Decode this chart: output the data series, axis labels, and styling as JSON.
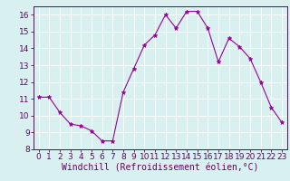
{
  "x": [
    0,
    1,
    2,
    3,
    4,
    5,
    6,
    7,
    8,
    9,
    10,
    11,
    12,
    13,
    14,
    15,
    16,
    17,
    18,
    19,
    20,
    21,
    22,
    23
  ],
  "y": [
    11.1,
    11.1,
    10.2,
    9.5,
    9.4,
    9.1,
    8.5,
    8.5,
    11.4,
    12.8,
    14.2,
    14.8,
    16.0,
    15.2,
    16.2,
    16.2,
    15.2,
    13.2,
    14.6,
    14.1,
    13.4,
    12.0,
    10.5,
    9.6
  ],
  "line_color": "#990099",
  "marker": "*",
  "marker_size": 3.5,
  "bg_color": "#d8f0f0",
  "grid_color": "#b8d8d8",
  "xlabel": "Windchill (Refroidissement éolien,°C)",
  "xlim": [
    -0.5,
    23.5
  ],
  "ylim": [
    8,
    16.5
  ],
  "yticks": [
    8,
    9,
    10,
    11,
    12,
    13,
    14,
    15,
    16
  ],
  "xticks": [
    0,
    1,
    2,
    3,
    4,
    5,
    6,
    7,
    8,
    9,
    10,
    11,
    12,
    13,
    14,
    15,
    16,
    17,
    18,
    19,
    20,
    21,
    22,
    23
  ],
  "xlabel_fontsize": 7,
  "tick_fontsize": 6.5,
  "spine_color": "#660066",
  "line_width": 0.8
}
